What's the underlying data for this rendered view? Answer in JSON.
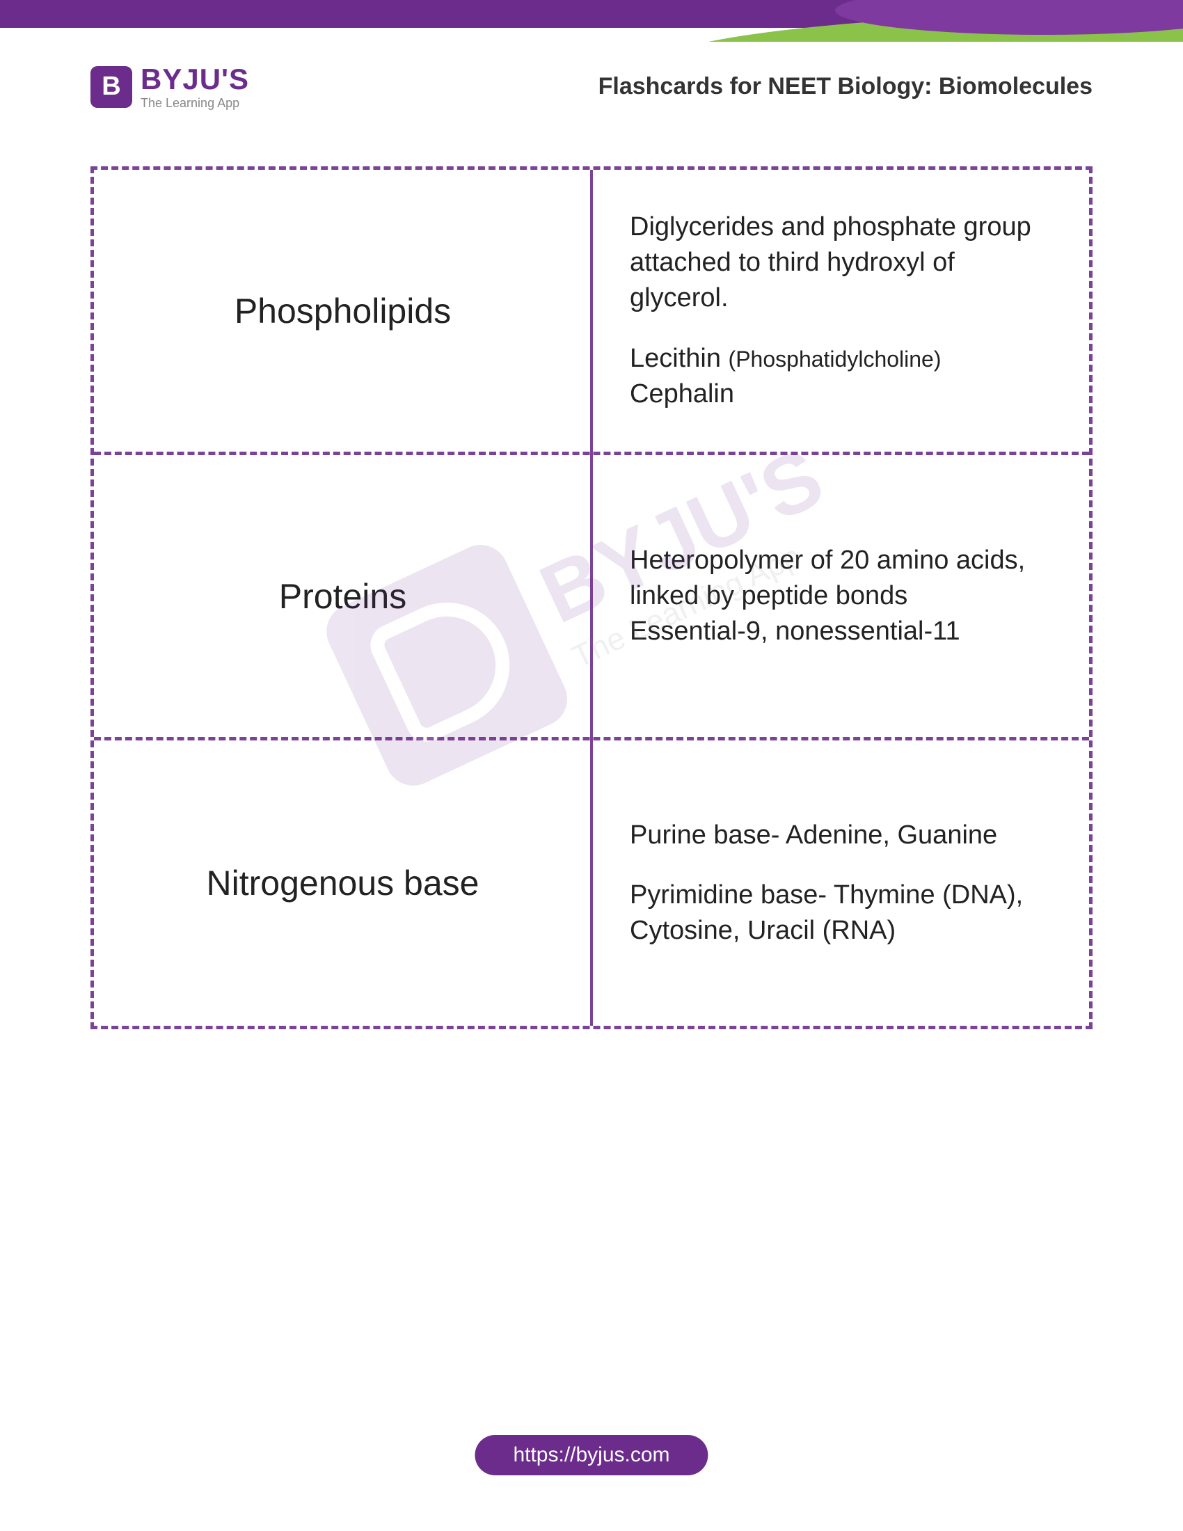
{
  "colors": {
    "primary_purple": "#6b2c8c",
    "dashed_border": "#7b4397",
    "accent_green": "#8bc34a",
    "text_dark": "#222222",
    "text_gray": "#888888",
    "background": "#ffffff"
  },
  "logo": {
    "icon_letter": "B",
    "name": "BYJU'S",
    "tagline": "The Learning App"
  },
  "page_title": "Flashcards for NEET Biology: Biomolecules",
  "flashcards": [
    {
      "term": "Phospholipids",
      "blocks": [
        {
          "text": "Diglycerides and phosphate group attached to third hydroxyl of glycerol."
        },
        {
          "text": "Lecithin (Phosphatidylcholine) Cephalin",
          "has_small": true,
          "main": "Lecithin ",
          "small": "(Phosphatidylcholine)",
          "suffix": " Cephalin"
        }
      ]
    },
    {
      "term": "Proteins",
      "blocks": [
        {
          "text": "Heteropolymer of 20 amino acids, linked by peptide bonds\nEssential-9, nonessential-11"
        }
      ]
    },
    {
      "term": "Nitrogenous base",
      "blocks": [
        {
          "text": "Purine base- Adenine, Guanine"
        },
        {
          "text": "Pyrimidine base- Thymine (DNA), Cytosine, Uracil (RNA)"
        }
      ]
    }
  ],
  "watermark": {
    "name": "BYJU'S",
    "tagline": "The Learning App"
  },
  "footer": {
    "url": "https://byjus.com"
  }
}
